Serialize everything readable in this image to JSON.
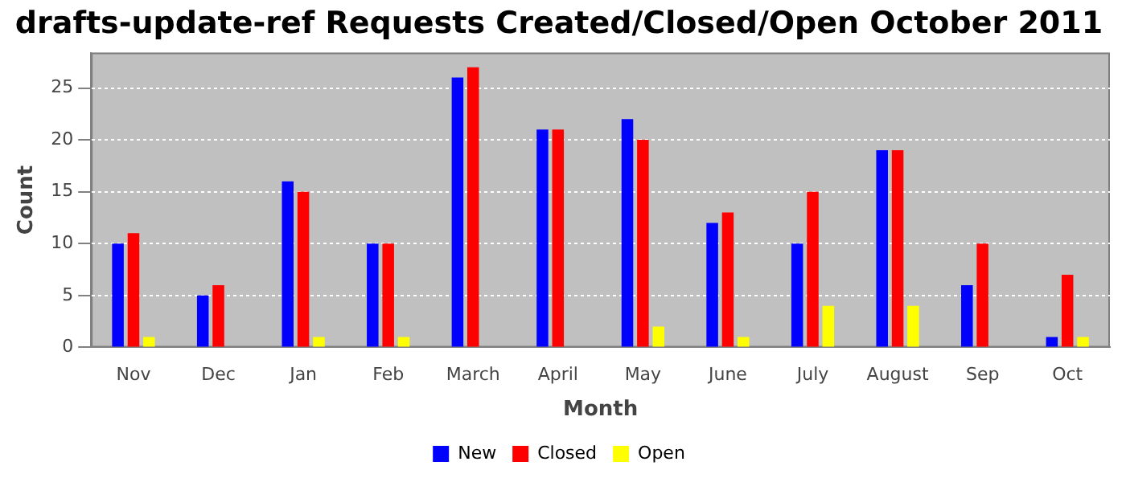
{
  "chart_data": {
    "type": "bar",
    "title": "drafts-update-ref Requests Created/Closed/Open October 2011",
    "xlabel": "Month",
    "ylabel": "Count",
    "categories": [
      "Nov",
      "Dec",
      "Jan",
      "Feb",
      "March",
      "April",
      "May",
      "June",
      "July",
      "August",
      "Sep",
      "Oct"
    ],
    "series": [
      {
        "name": "New",
        "color": "#0000ff",
        "values": [
          10,
          5,
          16,
          10,
          26,
          21,
          22,
          12,
          10,
          19,
          6,
          1
        ]
      },
      {
        "name": "Closed",
        "color": "#ff0000",
        "values": [
          11,
          6,
          15,
          10,
          27,
          21,
          20,
          13,
          15,
          19,
          10,
          7
        ]
      },
      {
        "name": "Open",
        "color": "#ffff00",
        "values": [
          1,
          0,
          1,
          1,
          0,
          0,
          2,
          1,
          4,
          4,
          0,
          1
        ]
      }
    ],
    "ylim": [
      0,
      28.4
    ],
    "yticks": [
      0,
      5,
      10,
      15,
      20,
      25
    ],
    "grid": "y",
    "legend": "bottom"
  }
}
